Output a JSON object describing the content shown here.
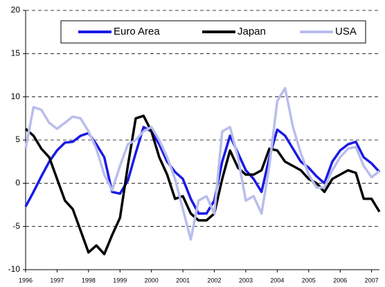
{
  "chart_data": {
    "type": "line",
    "x": [
      1996,
      1996.25,
      1996.5,
      1996.75,
      1997,
      1997.25,
      1997.5,
      1997.75,
      1998,
      1998.25,
      1998.5,
      1998.75,
      1999,
      1999.25,
      1999.5,
      1999.75,
      2000,
      2000.25,
      2000.5,
      2000.75,
      2001,
      2001.25,
      2001.5,
      2001.75,
      2002,
      2002.25,
      2002.5,
      2002.75,
      2003,
      2003.25,
      2003.5,
      2003.75,
      2004,
      2004.25,
      2004.5,
      2004.75,
      2005,
      2005.25,
      2005.5,
      2005.75,
      2006,
      2006.25,
      2006.5,
      2006.75,
      2007,
      2007.25
    ],
    "series": [
      {
        "name": "Euro Area",
        "color": "#1a1ae6",
        "values": [
          -2.7,
          -1.0,
          0.8,
          2.5,
          3.8,
          4.7,
          4.8,
          5.5,
          5.8,
          4.5,
          3.0,
          -1.0,
          -1.2,
          0.3,
          3.5,
          6.5,
          6.0,
          4.5,
          2.5,
          1.3,
          0.5,
          -1.8,
          -3.5,
          -3.5,
          -2.0,
          2.5,
          5.5,
          3.5,
          1.5,
          0.5,
          -1.0,
          3.0,
          6.2,
          5.5,
          4.0,
          2.5,
          1.8,
          0.8,
          0.0,
          2.5,
          3.8,
          4.5,
          4.8,
          3.0,
          2.3,
          1.3
        ]
      },
      {
        "name": "Japan",
        "color": "#000000",
        "values": [
          6.3,
          5.5,
          4.0,
          3.0,
          0.5,
          -2.0,
          -3.0,
          -5.5,
          -8.0,
          -7.2,
          -8.2,
          -6.0,
          -4.0,
          2.0,
          7.5,
          7.8,
          6.0,
          3.0,
          1.0,
          -1.8,
          -1.5,
          -3.5,
          -4.3,
          -4.3,
          -3.5,
          0.5,
          3.8,
          1.8,
          1.0,
          1.0,
          1.5,
          4.0,
          3.8,
          2.5,
          2.0,
          1.5,
          0.5,
          0.0,
          -1.0,
          0.5,
          1.0,
          1.5,
          1.2,
          -1.8,
          -1.8,
          -3.3
        ]
      },
      {
        "name": "USA",
        "color": "#b9bdeb",
        "values": [
          4.0,
          8.8,
          8.5,
          7.0,
          6.3,
          7.0,
          7.7,
          7.5,
          6.0,
          4.0,
          1.0,
          -0.8,
          2.0,
          4.5,
          5.0,
          6.0,
          6.5,
          5.0,
          3.0,
          0.5,
          -3.0,
          -6.5,
          -2.0,
          -1.5,
          -3.5,
          6.0,
          6.5,
          3.0,
          -2.0,
          -1.5,
          -3.5,
          2.0,
          9.5,
          11.0,
          6.5,
          3.5,
          1.0,
          -0.5,
          -0.5,
          1.5,
          3.0,
          4.0,
          4.2,
          2.0,
          0.7,
          1.4
        ]
      }
    ],
    "xlim": [
      1996,
      2007.25
    ],
    "xticks": [
      1996,
      1997,
      1998,
      1999,
      2000,
      2001,
      2002,
      2003,
      2004,
      2005,
      2006,
      2007
    ],
    "ylim": [
      -10,
      20
    ],
    "yticks": [
      -10,
      -5,
      0,
      5,
      10,
      15,
      20
    ],
    "grid": true
  }
}
